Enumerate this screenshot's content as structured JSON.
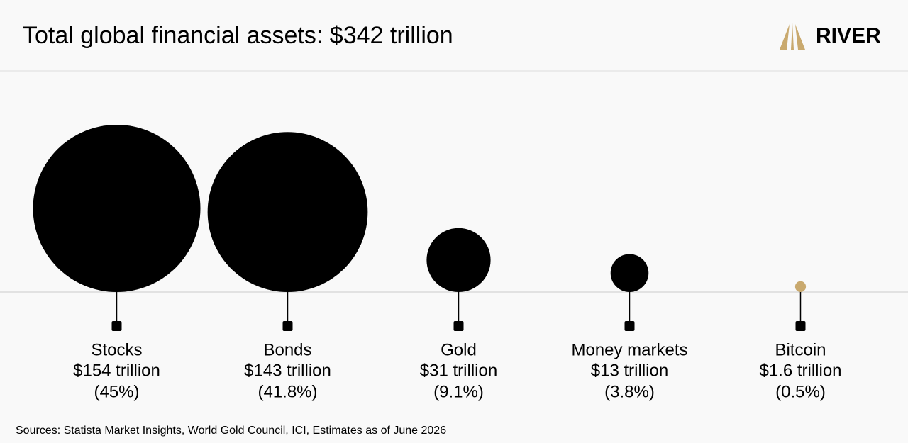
{
  "brand": "RIVER",
  "chart_data": {
    "type": "bubble",
    "title": "Total global financial assets: $342 trillion",
    "categories": [
      "Stocks",
      "Bonds",
      "Gold",
      "Money markets",
      "Bitcoin"
    ],
    "values": [
      154,
      143,
      31,
      13,
      1.6
    ],
    "value_labels": [
      "$154 trillion",
      "$143 trillion",
      "$31 trillion",
      "$13 trillion",
      "$1.6 trillion"
    ],
    "shares": [
      45,
      41.8,
      9.1,
      3.8,
      0.5
    ],
    "share_labels": [
      "(45%)",
      "(41.8%)",
      "(9.1%)",
      "(3.8%)",
      "(0.5%)"
    ],
    "colors": [
      "#000000",
      "#000000",
      "#000000",
      "#000000",
      "#c9a96e"
    ],
    "source": "Sources: Statista Market Insights, World Gold Council, ICI, Estimates as of June 2026"
  }
}
